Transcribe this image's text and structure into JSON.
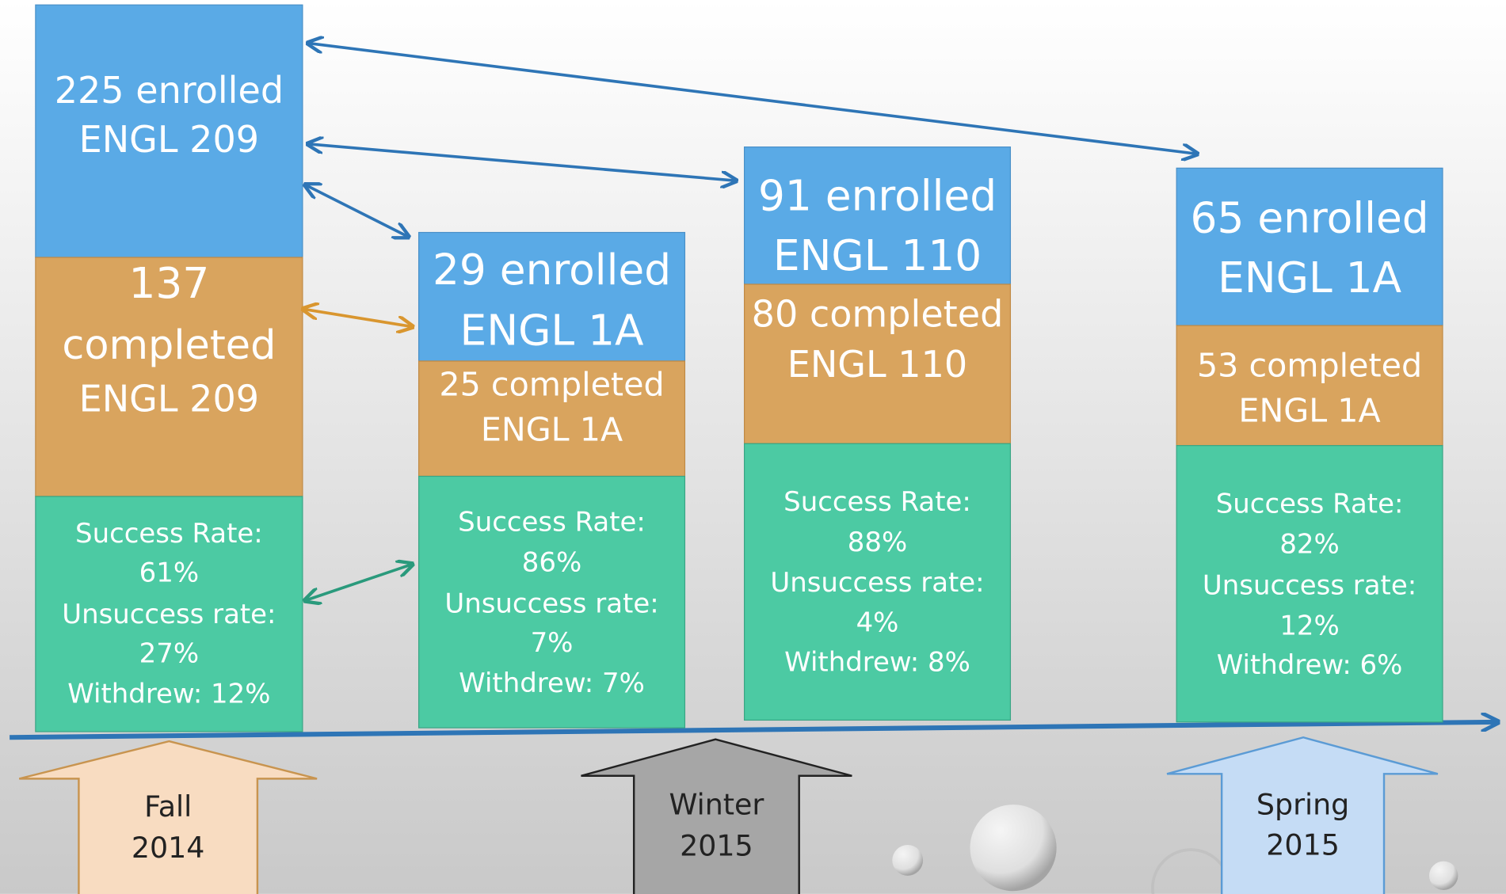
{
  "columns": [
    {
      "enrolled": [
        "225 enrolled",
        "ENGL 209"
      ],
      "completed": [
        "137",
        "completed",
        "ENGL 209"
      ],
      "stats": [
        "Success Rate:",
        "61%",
        "Unsuccess rate:",
        "27%",
        "Withdrew: 12%"
      ]
    },
    {
      "enrolled": [
        "29 enrolled",
        "ENGL 1A"
      ],
      "completed": [
        "25 completed",
        "ENGL 1A"
      ],
      "stats": [
        "Success Rate:",
        "86%",
        "Unsuccess rate:",
        "7%",
        "Withdrew: 7%"
      ]
    },
    {
      "enrolled": [
        "91 enrolled",
        "ENGL 110"
      ],
      "completed": [
        "80 completed",
        "ENGL 110"
      ],
      "stats": [
        "Success Rate:",
        "88%",
        "Unsuccess rate:",
        "4%",
        "Withdrew: 8%"
      ]
    },
    {
      "enrolled": [
        "65 enrolled",
        "ENGL 1A"
      ],
      "completed": [
        "53 completed",
        "ENGL 1A"
      ],
      "stats": [
        "Success Rate:",
        "82%",
        "Unsuccess rate:",
        "12%",
        "Withdrew: 6%"
      ]
    }
  ],
  "seasons": [
    [
      "Fall",
      "2014"
    ],
    [
      "Winter",
      "2015"
    ],
    [
      "Spring",
      "2015"
    ]
  ]
}
